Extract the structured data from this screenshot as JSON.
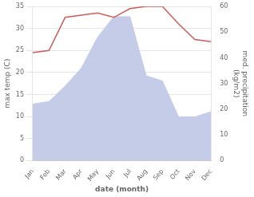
{
  "chart_data": {
    "type": "line",
    "xlabel": "date (month)",
    "ylabel": "max temp (C)",
    "y2label": "med. precipitation\n(kg/m2)",
    "categories": [
      "Jan",
      "Feb",
      "Mar",
      "Apr",
      "May",
      "Jun",
      "Jul",
      "Aug",
      "Sep",
      "Oct",
      "Nov",
      "Dec"
    ],
    "series": [
      {
        "type": "line",
        "color": "#cd5c5c",
        "axis": "y",
        "values": [
          24.5,
          25.0,
          32.5,
          33.0,
          33.5,
          32.5,
          34.5,
          35.0,
          35.0,
          31.0,
          27.5,
          27.0
        ]
      },
      {
        "type": "area",
        "color": "#c5cce8",
        "axis": "y2",
        "values": [
          22,
          23,
          29,
          36,
          48,
          56,
          56,
          33,
          31,
          17,
          17,
          19
        ]
      }
    ],
    "ylim": [
      0,
      35
    ],
    "yticks": [
      0,
      5,
      10,
      15,
      20,
      25,
      30,
      35
    ],
    "y2lim": [
      0,
      60
    ],
    "y2ticks": [
      0,
      10,
      20,
      30,
      40,
      50,
      60
    ],
    "grid": true
  }
}
